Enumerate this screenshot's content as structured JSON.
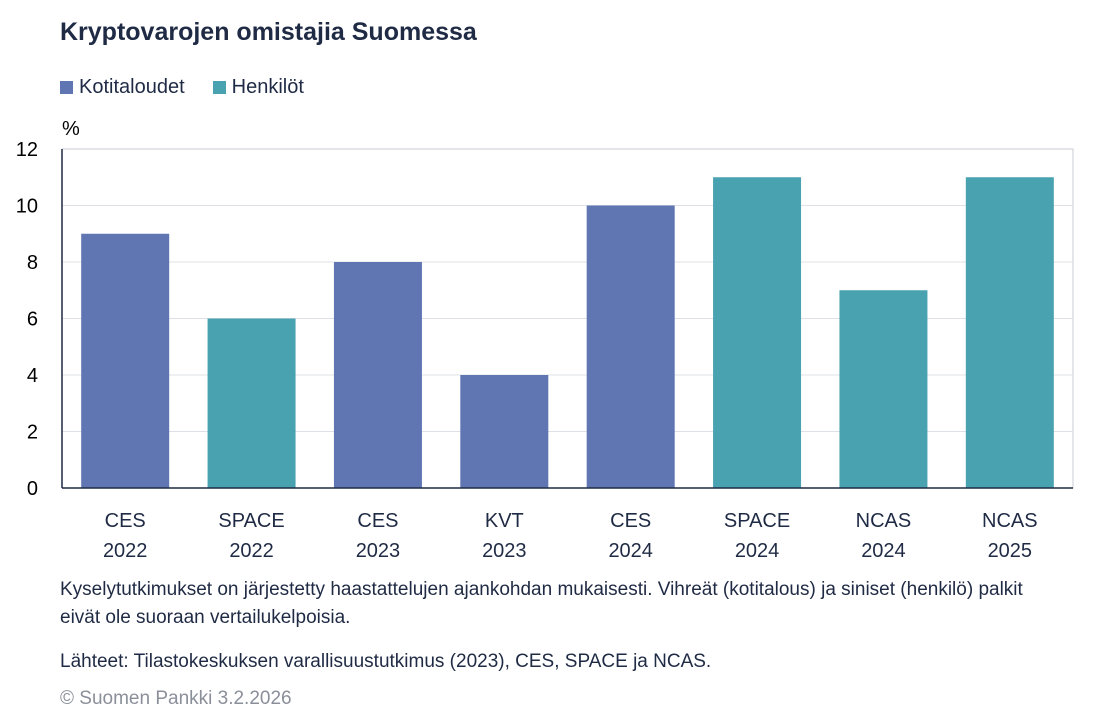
{
  "chart_data": {
    "type": "bar",
    "title": "Kryptovarojen omistajia Suomessa",
    "ylabel": "%",
    "ylim": [
      0,
      12
    ],
    "yticks": [
      0,
      2,
      4,
      6,
      8,
      10,
      12
    ],
    "grid": true,
    "legend_placement": "top-left",
    "legend": [
      {
        "name": "Kotitaloudet",
        "color": "#5f76b3"
      },
      {
        "name": "Henkilöt",
        "color": "#48a2b0"
      }
    ],
    "categories": [
      [
        "CES",
        "2022"
      ],
      [
        "SPACE",
        "2022"
      ],
      [
        "CES",
        "2023"
      ],
      [
        "KVT",
        "2023"
      ],
      [
        "CES",
        "2024"
      ],
      [
        "SPACE",
        "2024"
      ],
      [
        "NCAS",
        "2024"
      ],
      [
        "NCAS",
        "2025"
      ]
    ],
    "values": [
      9,
      6,
      8,
      4,
      10,
      11,
      7,
      11
    ],
    "series_of_bar": [
      0,
      1,
      0,
      0,
      0,
      1,
      1,
      1
    ]
  },
  "notes": {
    "line1": "Kyselytutkimukset on järjestetty haastattelujen ajankohdan mukaisesti. Vihreät (kotitalous) ja siniset (henkilö) palkit eivät ole suoraan vertailukelpoisia.",
    "sources": "Lähteet: Tilastokeskuksen varallisuustutkimus (2023), CES, SPACE ja NCAS.",
    "copyright": "© Suomen Pankki 3.2.2026"
  }
}
